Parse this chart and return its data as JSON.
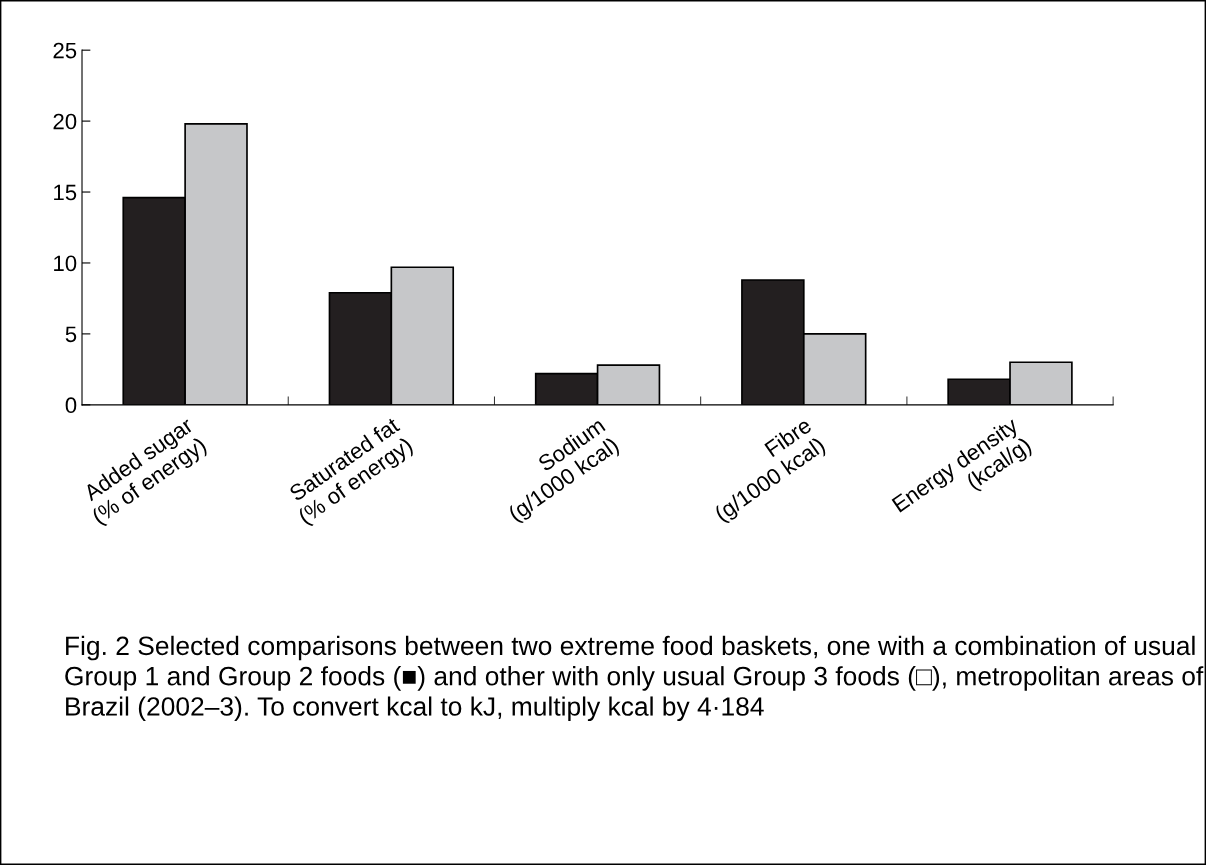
{
  "chart_data": {
    "type": "bar",
    "categories": [
      "Added sugar\n(% of energy)",
      "Saturated fat\n(% of energy)",
      "Sodium\n(g/1000 kcal)",
      "Fibre\n(g/1000 kcal)",
      "Energy density\n(kcal/g)"
    ],
    "series": [
      {
        "color": "#231f20",
        "values": [
          14.6,
          7.9,
          2.2,
          8.8,
          1.8
        ]
      },
      {
        "color": "#c6c7c9",
        "values": [
          19.8,
          9.7,
          2.8,
          5.0,
          3.0
        ]
      }
    ],
    "ylim": [
      0,
      25
    ],
    "yticks": [
      0,
      5,
      10,
      15,
      20,
      25
    ],
    "grid": false,
    "legend": false,
    "annotations": [
      "Fig. 2 Selected comparisons between two extreme food baskets, one with a combination of usual Group 1 and Group 2 foods (■) and other with only usual Group 3 foods (□), metropolitan areas of Brazil (2002–3). To convert kcal to kJ, multiply kcal by 4·184"
    ]
  }
}
